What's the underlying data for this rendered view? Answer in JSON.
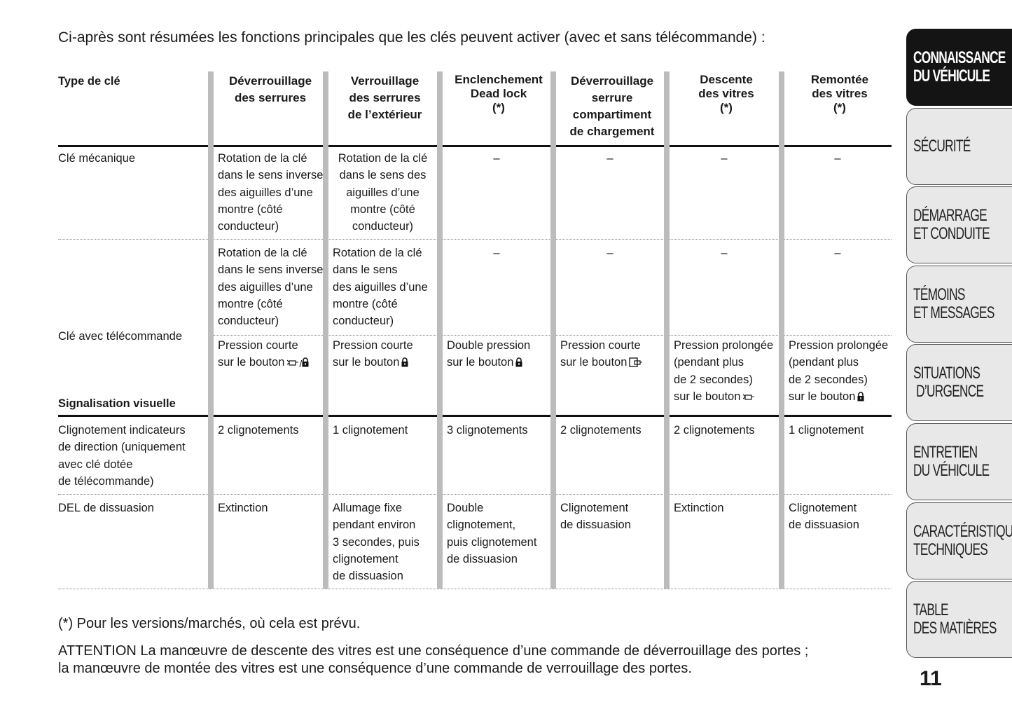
{
  "intro": "Ci-après sont résumées les fonctions principales que les clés peuvent activer (avec et sans télécommande) :",
  "table": {
    "corner_label": "Type de clé",
    "headers": [
      "Déverrouillage\ndes serrures",
      "Verrouillage\ndes serrures\nde l’extérieur",
      "Enclenchement\nDead lock\n(*)",
      "Déverrouillage\nserrure\ncompartiment\nde chargement",
      "Descente\ndes vitres\n(*)",
      "Remontée\ndes vitres\n(*)"
    ],
    "row_labels": {
      "mechanical": "Clé mécanique",
      "remote": "Clé avec télécommande",
      "visual_section": "Signalisation visuelle",
      "indicators": "Clignotement indicateurs\nde direction (uniquement\navec clé dotée\nde télécommande)",
      "del": "DEL de dissuasion"
    },
    "rows": [
      {
        "cells": [
          {
            "text": "Rotation de la clé\ndans le sens inverse\ndes aiguilles d’une\nmontre (côté\nconducteur)"
          },
          {
            "text": "Rotation de la clé\ndans le sens des\naiguilles d’une\nmontre (côté\nconducteur)",
            "center": true
          },
          {
            "text": "–",
            "center": true
          },
          {
            "text": "–",
            "center": true
          },
          {
            "text": "–",
            "center": true
          },
          {
            "text": "–",
            "center": true
          }
        ]
      },
      {
        "cells": [
          {
            "text": "Rotation de la clé\ndans le sens inverse\ndes aiguilles d’une\nmontre (côté\nconducteur)"
          },
          {
            "text": "Rotation de la clé\ndans le sens\ndes aiguilles d’une\nmontre (côté\nconducteur)"
          },
          {
            "text": "–",
            "center": true
          },
          {
            "text": "–",
            "center": true
          },
          {
            "text": "–",
            "center": true
          },
          {
            "text": "–",
            "center": true
          }
        ]
      },
      {
        "cells": [
          {
            "text": "Pression courte\nsur le bouton",
            "icon": "unlock-slash-lock-icon"
          },
          {
            "text": "Pression courte\nsur le bouton",
            "icon": "lock-icon"
          },
          {
            "text": "Double pression\nsur le bouton",
            "icon": "lock-icon"
          },
          {
            "text": "Pression courte\nsur le bouton",
            "icon": "cargo-door-icon"
          },
          {
            "text": "Pression prolongée\n(pendant plus\nde 2 secondes)\nsur le bouton",
            "icon": "unlock-icon"
          },
          {
            "text": "Pression prolongée\n(pendant plus\nde 2 secondes)\nsur le bouton",
            "icon": "lock-icon"
          }
        ]
      },
      {
        "cells": [
          {
            "text": "2 clignotements"
          },
          {
            "text": "1 clignotement"
          },
          {
            "text": "3 clignotements"
          },
          {
            "text": "2 clignotements"
          },
          {
            "text": "2 clignotements"
          },
          {
            "text": "1 clignotement"
          }
        ]
      },
      {
        "cells": [
          {
            "text": "Extinction"
          },
          {
            "text": "Allumage fixe\npendant environ\n3 secondes, puis\nclignotement\nde dissuasion"
          },
          {
            "text": "Double\nclignotement,\npuis clignotement\nde dissuasion"
          },
          {
            "text": "Clignotement\nde dissuasion"
          },
          {
            "text": "Extinction"
          },
          {
            "text": "Clignotement\nde dissuasion"
          }
        ]
      }
    ]
  },
  "footnote": "(*) Pour les versions/marchés, où cela est prévu.",
  "attention": "ATTENTION La manœuvre de descente des vitres est une conséquence d’une commande de déverrouillage des portes ;\nla manœuvre de montée des vitres est une conséquence d’une commande de verrouillage des portes.",
  "side_tabs": [
    {
      "label": "CONNAISSANCE\nDU VÉHICULE",
      "active": true
    },
    {
      "label": "SÉCURITÉ"
    },
    {
      "label": "DÉMARRAGE\nET CONDUITE"
    },
    {
      "label": "TÉMOINS\nET MESSAGES"
    },
    {
      "label": "SITUATIONS\n D’URGENCE"
    },
    {
      "label": "ENTRETIEN\nDU VÉHICULE"
    },
    {
      "label": "CARACTÉRISTIQUES\nTECHNIQUES"
    },
    {
      "label": "TABLE\nDES MATIÈRES"
    }
  ],
  "page_number": "11",
  "colors": {
    "active_tab": "#141414",
    "tab": "#e8e8e8",
    "column_bar": "#bcbcbc"
  }
}
